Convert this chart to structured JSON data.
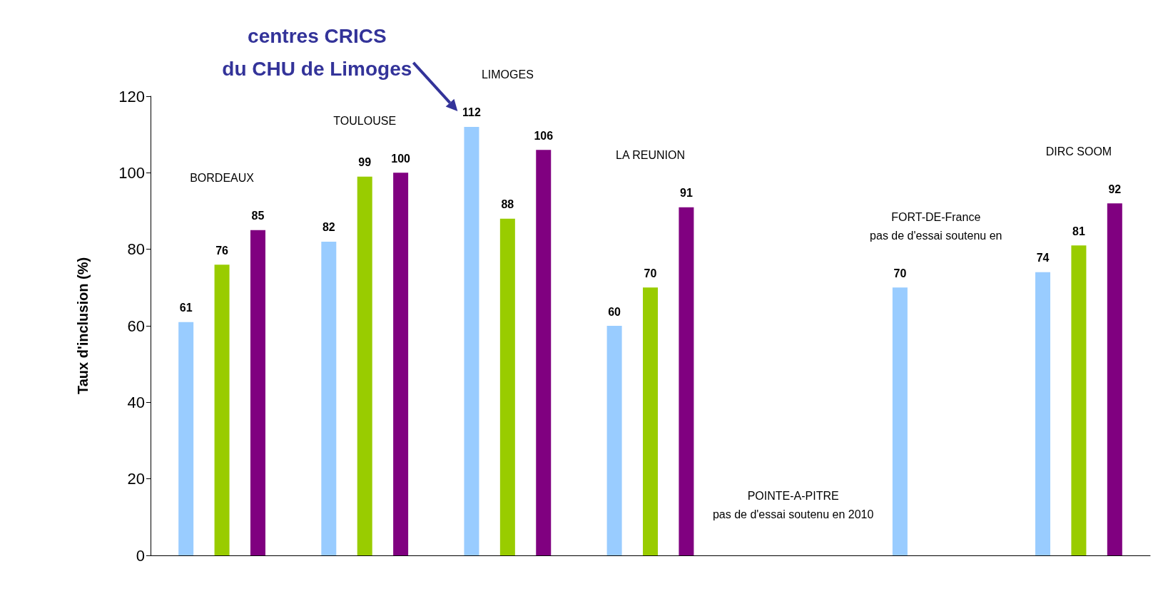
{
  "chart_data": {
    "type": "bar",
    "ylabel": "Taux d'inclusion (%)",
    "categories": [
      null,
      null,
      null,
      null,
      null,
      null,
      null
    ],
    "series": [
      {
        "color": "#99ccff",
        "values": [
          61,
          82,
          112,
          60,
          null,
          70,
          74
        ]
      },
      {
        "color": "#99cc00",
        "values": [
          76,
          99,
          88,
          70,
          null,
          null,
          81
        ]
      },
      {
        "color": "#800080",
        "values": [
          85,
          100,
          106,
          91,
          null,
          null,
          92
        ]
      }
    ],
    "ylim": [
      0,
      120
    ],
    "yticks": [
      0,
      20,
      40,
      60,
      80,
      100,
      120
    ],
    "grid": false,
    "data_labels": true,
    "annotations": [
      "BORDEAUX",
      "TOULOUSE",
      "LIMOGES",
      "LA REUNION",
      "POINTE-A-PITRE\npas de d'essai soutenu en 2010",
      "FORT-DE-France\npas de d'essai soutenu en",
      "DIRC SOOM",
      "centres CRICS\ndu CHU de Limoges"
    ]
  }
}
